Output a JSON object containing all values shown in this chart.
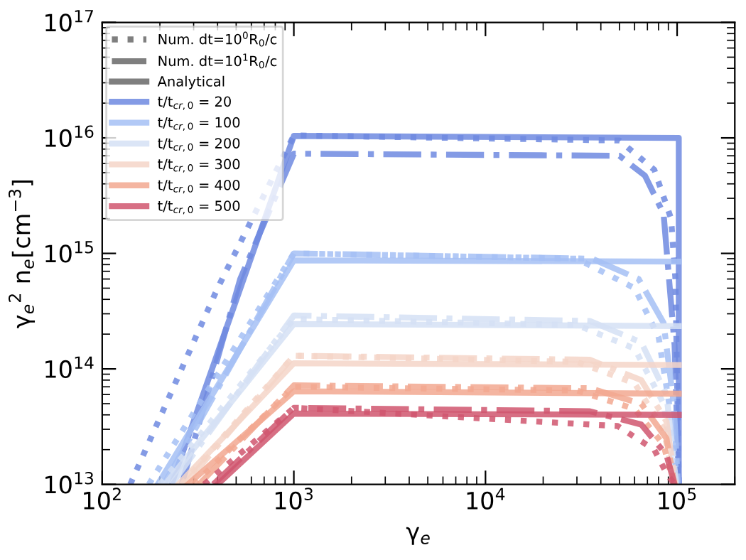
{
  "chart_data": {
    "type": "line",
    "xlabel": "γ$_{e}$",
    "ylabel": "γ$_{e}$$^{2}$ n$_{e}$[cm$^{−3}$]",
    "log": "xy",
    "xlim": [
      100,
      200000
    ],
    "ylim": [
      10000000000000.0,
      1e+17
    ],
    "xticks": [
      {
        "value": 100,
        "label": "10$^{2}$"
      },
      {
        "value": 1000,
        "label": "10$^{3}$"
      },
      {
        "value": 10000,
        "label": "10$^{4}$"
      },
      {
        "value": 100000,
        "label": "10$^{5}$"
      }
    ],
    "yticks": [
      {
        "value": 10000000000000.0,
        "label": "10$^{13}$"
      },
      {
        "value": 100000000000000.0,
        "label": "10$^{14}$"
      },
      {
        "value": 1000000000000000.0,
        "label": "10$^{15}$"
      },
      {
        "value": 1e+16,
        "label": "10$^{16}$"
      },
      {
        "value": 1e+17,
        "label": "10$^{17}$"
      }
    ],
    "grid": false,
    "legend": "top left",
    "annotations": [
      "Num. dt=10$^{0}$R$_{0}$/c",
      "Num. dt=10$^{1}$R$_{0}$/c",
      "Analytical"
    ],
    "series": [
      {
        "color": "#6f8ae0",
        "line_style": "dotted",
        "x": [
          140,
          400,
          1000,
          50000,
          76000,
          93000,
          98000,
          102000
        ],
        "values": [
          10000000000000.0,
          500000000000000.0,
          1.05e+16,
          9500000000000000.0,
          5300000000000000.0,
          2000000000000000.0,
          600000000000000.0,
          10000000000000.0
        ]
      },
      {
        "color": "#6f8ae0",
        "line_style": "dashdot",
        "x": [
          260,
          525,
          1000,
          50000,
          68000,
          85000,
          97000,
          102000
        ],
        "values": [
          10000000000000.0,
          600000000000000.0,
          7300000000000000.0,
          7000000000000000.0,
          4700000000000000.0,
          2200000000000000.0,
          160000000000000.0,
          10000000000000.0
        ]
      },
      {
        "name": "t/t$_{cr,0}$ = 20",
        "color": "#6f8ae0",
        "line_style": "solid",
        "x": [
          230,
          1000,
          102000,
          102000
        ],
        "values": [
          10000000000000.0,
          1.04e+16,
          1e+16,
          10000000000000.0
        ]
      },
      {
        "color": "#a4c0f5",
        "line_style": "dotted",
        "x": [
          175,
          1000,
          30000,
          60000,
          80000,
          93000,
          100000
        ],
        "values": [
          10000000000000.0,
          1000000000000000.0,
          900000000000000.0,
          500000000000000.0,
          190000000000000.0,
          39000000000000.0,
          10000000000000.0
        ]
      },
      {
        "color": "#a4c0f5",
        "line_style": "dashdot",
        "x": [
          210,
          1000,
          36000,
          63000,
          85000,
          96000,
          101000
        ],
        "values": [
          10000000000000.0,
          1000000000000000.0,
          900000000000000.0,
          600000000000000.0,
          250000000000000.0,
          50000000000000.0,
          10000000000000.0
        ]
      },
      {
        "name": "t/t$_{cr,0}$ = 100",
        "color": "#a4c0f5",
        "line_style": "solid",
        "x": [
          195,
          1000,
          102000
        ],
        "values": [
          10000000000000.0,
          870000000000000.0,
          850000000000000.0
        ]
      },
      {
        "color": "#d5e0f5",
        "line_style": "dotted",
        "x": [
          200,
          1000,
          30000,
          60000,
          85000,
          98000
        ],
        "values": [
          10000000000000.0,
          270000000000000.0,
          240000000000000.0,
          150000000000000.0,
          50000000000000.0,
          10000000000000.0
        ]
      },
      {
        "color": "#d5e0f5",
        "line_style": "dashdot",
        "x": [
          230,
          1000,
          35000,
          65000,
          88000,
          99000
        ],
        "values": [
          10000000000000.0,
          290000000000000.0,
          260000000000000.0,
          170000000000000.0,
          60000000000000.0,
          10000000000000.0
        ]
      },
      {
        "name": "t/t$_{cr,0}$ = 200",
        "color": "#d5e0f5",
        "line_style": "solid",
        "x": [
          213,
          1000,
          102000
        ],
        "values": [
          10000000000000.0,
          245000000000000.0,
          235000000000000.0
        ]
      },
      {
        "color": "#f5d5c8",
        "line_style": "dotted",
        "x": [
          260,
          1000,
          30000,
          60000,
          85000,
          97000
        ],
        "values": [
          10000000000000.0,
          130000000000000.0,
          115000000000000.0,
          75000000000000.0,
          30000000000000.0,
          10000000000000.0
        ]
      },
      {
        "color": "#f5d5c8",
        "line_style": "dashdot",
        "x": [
          270,
          1000,
          35000,
          65000,
          88000,
          98000
        ],
        "values": [
          10000000000000.0,
          130000000000000.0,
          120000000000000.0,
          80000000000000.0,
          35000000000000.0,
          10000000000000.0
        ]
      },
      {
        "name": "t/t$_{cr,0}$ = 300",
        "color": "#f5d5c8",
        "line_style": "solid",
        "x": [
          250,
          1000,
          102000
        ],
        "values": [
          10000000000000.0,
          112000000000000.0,
          108000000000000.0
        ]
      },
      {
        "color": "#f2a890",
        "line_style": "dotted",
        "x": [
          300,
          1000,
          30000,
          60000,
          85000,
          96000
        ],
        "values": [
          10000000000000.0,
          70000000000000.0,
          65000000000000.0,
          45000000000000.0,
          22000000000000.0,
          10000000000000.0
        ]
      },
      {
        "color": "#f2a890",
        "line_style": "dashdot",
        "x": [
          320,
          1000,
          35000,
          65000,
          88000,
          97000
        ],
        "values": [
          10000000000000.0,
          72000000000000.0,
          68000000000000.0,
          50000000000000.0,
          25000000000000.0,
          10000000000000.0
        ]
      },
      {
        "name": "t/t$_{cr,0}$ = 400",
        "color": "#f2a890",
        "line_style": "solid",
        "x": [
          280,
          1000,
          102000
        ],
        "values": [
          10000000000000.0,
          64000000000000.0,
          61000000000000.0
        ]
      },
      {
        "color": "#d0566e",
        "line_style": "dotted",
        "x": [
          340,
          1000,
          49000,
          76000,
          88000,
          97000
        ],
        "values": [
          10000000000000.0,
          46000000000000.0,
          32000000000000.0,
          20000000000000.0,
          12500000000000.0,
          10000000000000.0
        ]
      },
      {
        "color": "#d0566e",
        "line_style": "dashdot",
        "x": [
          380,
          1000,
          35000,
          65000,
          88000,
          97000
        ],
        "values": [
          10000000000000.0,
          46000000000000.0,
          43000000000000.0,
          33000000000000.0,
          18000000000000.0,
          10000000000000.0
        ]
      },
      {
        "name": "t/t$_{cr,0}$ = 500",
        "color": "#d0566e",
        "line_style": "solid",
        "x": [
          400,
          1000,
          102000
        ],
        "values": [
          10000000000000.0,
          41000000000000.0,
          40000000000000.0
        ]
      }
    ]
  }
}
